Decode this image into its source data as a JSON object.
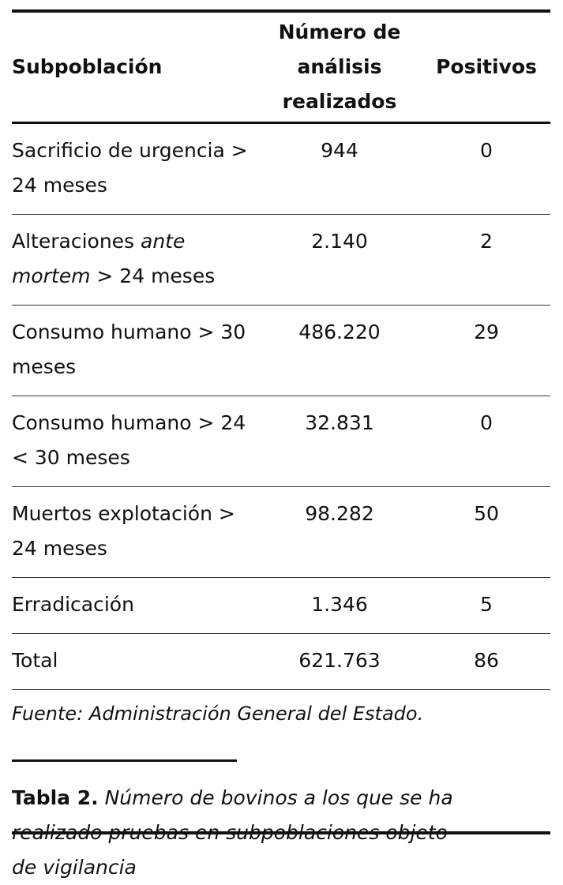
{
  "table": {
    "header": [
      "Subpoblación",
      "Número de análisis realizados",
      "Positivos"
    ],
    "rows": [
      [
        [
          "Sacrificio de urgencia > 24 meses"
        ],
        "944",
        "0"
      ],
      [
        [
          "Alteraciones ",
          "ante mortem",
          " > 24 meses"
        ],
        "2.140",
        "2"
      ],
      [
        [
          "Consumo humano > 30 meses"
        ],
        "486.220",
        "29"
      ],
      [
        [
          "Consumo humano > 24 < 30 meses"
        ],
        "32.831",
        "0"
      ],
      [
        [
          "Muertos explotación > 24 meses"
        ],
        "98.282",
        "50"
      ],
      [
        [
          "Erradicación"
        ],
        "1.346",
        "5"
      ],
      [
        [
          "Total"
        ],
        "621.763",
        "86"
      ]
    ]
  },
  "source": "Fuente: Administración General del Estado.",
  "caption": {
    "label": "Tabla 2.",
    "text": "Número de bovinos a los que se ha realizado pruebas en subpoblaciones objeto de vigilancia"
  }
}
